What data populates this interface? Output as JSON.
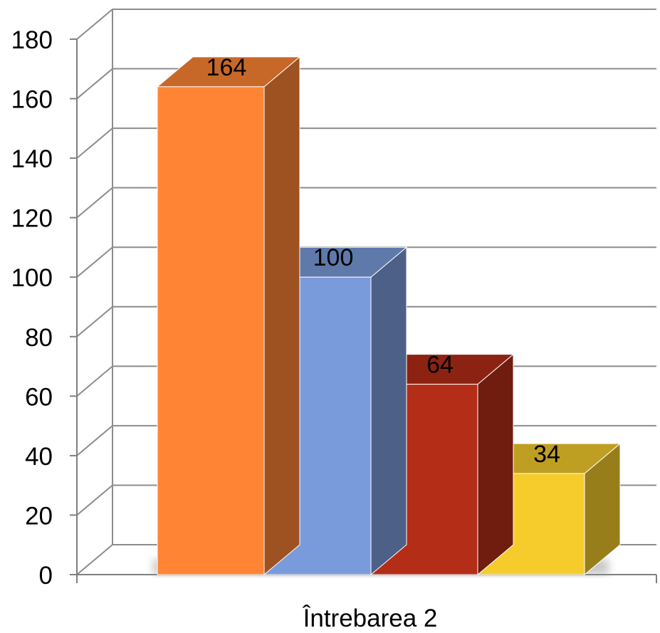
{
  "chart_data": {
    "type": "bar",
    "style": "3d-column",
    "categories": [
      "Întrebarea 2"
    ],
    "series": [
      {
        "values": [
          164
        ],
        "color": "#FF8535"
      },
      {
        "values": [
          100
        ],
        "color": "#7A9BDB"
      },
      {
        "values": [
          64
        ],
        "color": "#B42D17"
      },
      {
        "values": [
          34
        ],
        "color": "#F5CC2C"
      }
    ],
    "data_labels": [
      "164",
      "100",
      "64",
      "34"
    ],
    "ylim": [
      0,
      180
    ],
    "yticks": [
      "0",
      "20",
      "40",
      "60",
      "80",
      "100",
      "120",
      "140",
      "160",
      "180"
    ],
    "grid": true,
    "legend": false,
    "title": "",
    "xlabel": "",
    "ylabel": ""
  }
}
